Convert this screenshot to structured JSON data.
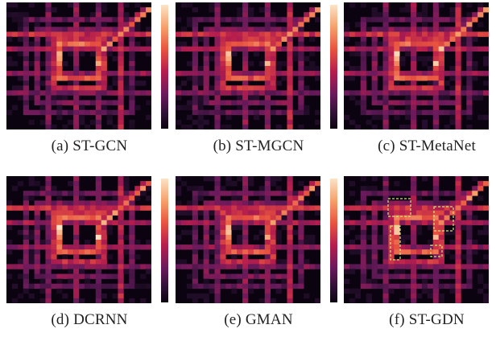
{
  "panels": [
    {
      "id": "a",
      "caption": "(a)  ST-GCN",
      "variant": 0,
      "boxes": false
    },
    {
      "id": "b",
      "caption": "(b)  ST-MGCN",
      "variant": 1,
      "boxes": false
    },
    {
      "id": "c",
      "caption": "(c)  ST-MetaNet",
      "variant": 2,
      "boxes": false
    },
    {
      "id": "d",
      "caption": "(d)  DCRNN",
      "variant": 3,
      "boxes": false
    },
    {
      "id": "e",
      "caption": "(e)  GMAN",
      "variant": 4,
      "boxes": false
    },
    {
      "id": "f",
      "caption": "(f)  ST-GDN",
      "variant": 5,
      "boxes": true
    }
  ],
  "colormap": [
    "#0b0410",
    "#2d1135",
    "#6b1a5c",
    "#b51d4d",
    "#e8533f",
    "#f6a06b",
    "#fbe3c6"
  ],
  "highlight_color": "#c8e67a"
}
